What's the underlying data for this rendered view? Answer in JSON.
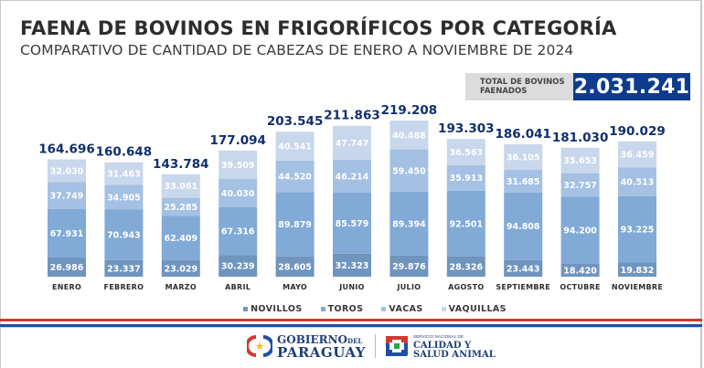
{
  "header": {
    "title": "FAENA DE BOVINOS EN FRIGORÍFICOS POR CATEGORÍA",
    "subtitle": "COMPARATIVO DE CANTIDAD DE CABEZAS DE ENERO A NOVIEMBRE DE 2024"
  },
  "total": {
    "label_line1": "TOTAL DE BOVINOS",
    "label_line2": "FAENADOS",
    "value": "2.031.241"
  },
  "colors": {
    "novillos": "#6f95bf",
    "toros": "#81aad6",
    "vacas": "#a4c0e3",
    "vaquillas": "#c8d7eb",
    "total_label": "#0f2f6e",
    "segment_label": "#ffffff",
    "month_label": "#2d2d2d",
    "accent_blue": "#0e3c8c",
    "flag_red": "#d03a2f",
    "flag_blue": "#1e4fa3"
  },
  "chart_data": {
    "type": "bar",
    "stacked": true,
    "title": "FAENA DE BOVINOS EN FRIGORÍFICOS POR CATEGORÍA",
    "subtitle": "COMPARATIVO DE CANTIDAD DE CABEZAS DE ENERO A NOVIEMBRE DE 2024",
    "xlabel": "",
    "ylabel": "",
    "grid": false,
    "legend_position": "bottom",
    "categories": [
      "ENERO",
      "FEBRERO",
      "MARZO",
      "ABRIL",
      "MAYO",
      "JUNIO",
      "JULIO",
      "AGOSTO",
      "SEPTIEMBRE",
      "OCTUBRE",
      "NOVIEMBRE"
    ],
    "series": [
      {
        "name": "NOVILLOS",
        "key": "novillos",
        "values": [
          26986,
          23337,
          23029,
          30239,
          28605,
          32323,
          29876,
          28326,
          23443,
          18420,
          19832
        ]
      },
      {
        "name": "TOROS",
        "key": "toros",
        "values": [
          67931,
          70943,
          62409,
          67316,
          89879,
          85579,
          89394,
          92501,
          94808,
          94200,
          93225
        ]
      },
      {
        "name": "VACAS",
        "key": "vacas",
        "values": [
          37749,
          34905,
          25285,
          40030,
          44520,
          46214,
          59450,
          35913,
          31685,
          32757,
          40513
        ]
      },
      {
        "name": "VAQUILLAS",
        "key": "vaquillas",
        "values": [
          32030,
          31463,
          33061,
          39509,
          40541,
          47747,
          40488,
          36563,
          36105,
          35653,
          36459
        ]
      }
    ],
    "totals": [
      164696,
      160648,
      143784,
      177094,
      203545,
      211863,
      219208,
      193303,
      186041,
      181030,
      190029
    ],
    "value_labels": {
      "NOVILLOS": [
        "26.986",
        "23.337",
        "23.029",
        "30.239",
        "28.605",
        "32.323",
        "29.876",
        "28.326",
        "23.443",
        "18.420",
        "19.832"
      ],
      "TOROS": [
        "67.931",
        "70.943",
        "62.409",
        "67.316",
        "89.879",
        "85.579",
        "89.394",
        "92.501",
        "94.808",
        "94.200",
        "93.225"
      ],
      "VACAS": [
        "37.749",
        "34.905",
        "25.285",
        "40.030",
        "44.520",
        "46.214",
        "59.450",
        "35.913",
        "31.685",
        "32.757",
        "40.513"
      ],
      "VAQUILLAS": [
        "32.030",
        "31.463",
        "33.061",
        "39.509",
        "40.541",
        "47.747",
        "40.488",
        "36.563",
        "36.105",
        "35.653",
        "36.459"
      ]
    },
    "total_labels": [
      "164.696",
      "160.648",
      "143.784",
      "177.094",
      "203.545",
      "211.863",
      "219.208",
      "193.303",
      "186.041",
      "181.030",
      "190.029"
    ],
    "ylim": [
      0,
      219208
    ]
  },
  "legend": [
    {
      "label": "NOVILLOS",
      "key": "novillos"
    },
    {
      "label": "TOROS",
      "key": "toros"
    },
    {
      "label": "VACAS",
      "key": "vacas"
    },
    {
      "label": "VAQUILLAS",
      "key": "vaquillas"
    }
  ],
  "footer": {
    "gov_line1": "GOBIERNO",
    "gov_line1_small": "DEL",
    "gov_line2": "PARAGUAY",
    "senacsa_small": "SERVICIO NACIONAL DE",
    "senacsa_line1": "CALIDAD Y",
    "senacsa_line2": "SALUD ANIMAL"
  }
}
